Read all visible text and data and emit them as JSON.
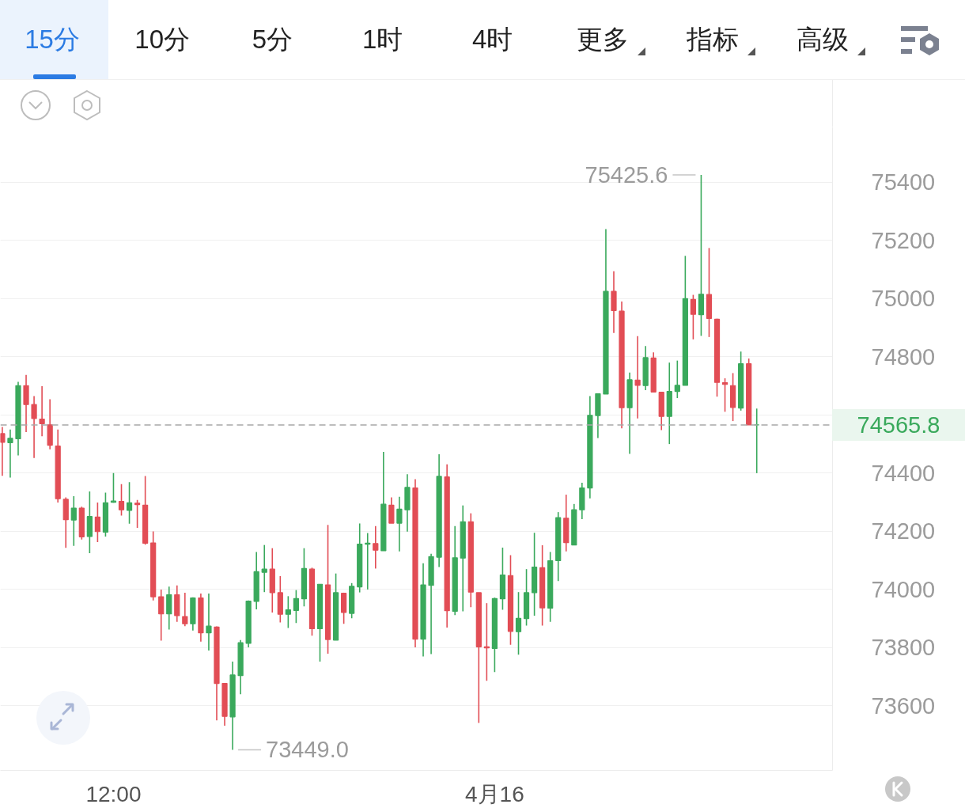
{
  "chart_data": {
    "type": "candlestick",
    "annotations": [
      "15分",
      "10分",
      "5分",
      "1时",
      "4时",
      "更多",
      "指标",
      "高级",
      "75425.6",
      "73449.0"
    ],
    "categories": [
      null,
      null,
      null,
      null,
      null,
      null,
      null,
      null,
      null,
      null,
      null,
      null,
      null,
      null,
      "12:00",
      null,
      null,
      null,
      null,
      null,
      null,
      null,
      null,
      null,
      null,
      null,
      null,
      null,
      null,
      null,
      null,
      null,
      null,
      null,
      null,
      null,
      null,
      null,
      null,
      null,
      null,
      null,
      null,
      null,
      null,
      null,
      null,
      null,
      null,
      null,
      null,
      null,
      null,
      null,
      null,
      null,
      null,
      null,
      null,
      null,
      null,
      null,
      "4月16",
      null,
      null,
      null,
      null,
      null,
      null,
      null,
      null,
      null,
      null,
      null,
      null,
      null,
      null,
      null,
      null,
      null,
      null,
      null,
      null,
      null,
      null,
      null,
      null,
      null,
      null,
      null,
      null,
      null,
      null,
      null,
      null,
      null
    ],
    "ohlc": [
      [
        74536,
        74559,
        74391,
        74506
      ],
      [
        74505,
        74550,
        74385,
        74520
      ],
      [
        74518,
        74714,
        74461,
        74701
      ],
      [
        74701,
        74738,
        74541,
        74636
      ],
      [
        74636,
        74665,
        74452,
        74588
      ],
      [
        74586,
        74699,
        74527,
        74570
      ],
      [
        74566,
        74654,
        74482,
        74496
      ],
      [
        74493,
        74550,
        74299,
        74312
      ],
      [
        74310,
        74317,
        74143,
        74240
      ],
      [
        74239,
        74321,
        74150,
        74280
      ],
      [
        74280,
        74285,
        74172,
        74181
      ],
      [
        74182,
        74337,
        74125,
        74251
      ],
      [
        74249,
        74299,
        74163,
        74199
      ],
      [
        74197,
        74333,
        74182,
        74298
      ],
      [
        74300,
        74400,
        74298,
        74304
      ],
      [
        74303,
        74362,
        74254,
        74274
      ],
      [
        74272,
        74369,
        74226,
        74298
      ],
      [
        74297,
        74308,
        74212,
        74292
      ],
      [
        74290,
        74390,
        74154,
        74159
      ],
      [
        74160,
        74200,
        73962,
        73975
      ],
      [
        73975,
        74000,
        73824,
        73916
      ],
      [
        73916,
        74010,
        73862,
        73982
      ],
      [
        73982,
        74014,
        73889,
        73910
      ],
      [
        73907,
        73989,
        73874,
        73882
      ],
      [
        73882,
        73973,
        73859,
        73971
      ],
      [
        73971,
        73986,
        73821,
        73851
      ],
      [
        73851,
        73986,
        73790,
        73874
      ],
      [
        73871,
        73873,
        73550,
        73677
      ],
      [
        73677,
        73678,
        73532,
        73564
      ],
      [
        73562,
        73752,
        73449,
        73706
      ],
      [
        73704,
        73826,
        73640,
        73817
      ],
      [
        73815,
        73962,
        73801,
        73960
      ],
      [
        73959,
        74129,
        73932,
        74061
      ],
      [
        74059,
        74153,
        73991,
        74070
      ],
      [
        74070,
        74142,
        73921,
        73989
      ],
      [
        73989,
        74046,
        73887,
        73915
      ],
      [
        73915,
        73977,
        73868,
        73930
      ],
      [
        73928,
        73998,
        73885,
        73969
      ],
      [
        73968,
        74142,
        73942,
        74072
      ],
      [
        74070,
        74075,
        73841,
        73865
      ],
      [
        73865,
        74018,
        73752,
        74018
      ],
      [
        74016,
        74222,
        73779,
        73828
      ],
      [
        73826,
        74055,
        73826,
        73989
      ],
      [
        73987,
        73989,
        73882,
        73921
      ],
      [
        73918,
        74022,
        73901,
        74011
      ],
      [
        74009,
        74227,
        73990,
        74156
      ],
      [
        74156,
        74194,
        74000,
        74159
      ],
      [
        74158,
        74218,
        74072,
        74135
      ],
      [
        74133,
        74473,
        74133,
        74293
      ],
      [
        74290,
        74317,
        74228,
        74228
      ],
      [
        74228,
        74319,
        74131,
        74276
      ],
      [
        74274,
        74396,
        74199,
        74351
      ],
      [
        74349,
        74379,
        73801,
        73829
      ],
      [
        73829,
        74090,
        73770,
        74016
      ],
      [
        74014,
        74123,
        73778,
        74113
      ],
      [
        74111,
        74465,
        74077,
        74389
      ],
      [
        74387,
        74430,
        73869,
        73927
      ],
      [
        73925,
        74218,
        73912,
        74109
      ],
      [
        74108,
        74289,
        73925,
        74233
      ],
      [
        74233,
        74262,
        73939,
        73991
      ],
      [
        73989,
        73989,
        73541,
        73803
      ],
      [
        73803,
        73953,
        73686,
        73799
      ],
      [
        73797,
        73972,
        73716,
        73969
      ],
      [
        73968,
        74144,
        73930,
        74050
      ],
      [
        74048,
        74118,
        73810,
        73856
      ],
      [
        73855,
        73991,
        73776,
        73901
      ],
      [
        73900,
        74070,
        73876,
        73989
      ],
      [
        73989,
        74195,
        73910,
        74077
      ],
      [
        74075,
        74152,
        73876,
        73937
      ],
      [
        73936,
        74129,
        73889,
        74099
      ],
      [
        74099,
        74266,
        74029,
        74247
      ],
      [
        74245,
        74326,
        74131,
        74161
      ],
      [
        74153,
        74294,
        74152,
        74274
      ],
      [
        74274,
        74367,
        74242,
        74349
      ],
      [
        74349,
        74665,
        74313,
        74599
      ],
      [
        74598,
        74674,
        74521,
        74673
      ],
      [
        74672,
        75239,
        74672,
        75025
      ],
      [
        75025,
        75094,
        74882,
        74959
      ],
      [
        74957,
        74990,
        74554,
        74625
      ],
      [
        74625,
        74746,
        74466,
        74721
      ],
      [
        74720,
        74871,
        74588,
        74702
      ],
      [
        74701,
        74837,
        74685,
        74797
      ],
      [
        74796,
        74815,
        74679,
        74679
      ],
      [
        74678,
        74679,
        74548,
        74595
      ],
      [
        74595,
        74780,
        74500,
        74681
      ],
      [
        74681,
        74787,
        74658,
        74702
      ],
      [
        74702,
        75147,
        74702,
        75000
      ],
      [
        74997,
        75013,
        74860,
        74946
      ],
      [
        74945,
        75425.6,
        74872,
        75015
      ],
      [
        75014,
        75174,
        74868,
        74932
      ],
      [
        74929,
        74931,
        74663,
        74712
      ],
      [
        74711,
        74726,
        74611,
        74705
      ],
      [
        74701,
        74744,
        74579,
        74626
      ],
      [
        74624,
        74818,
        74615,
        74776
      ],
      [
        74776,
        74794,
        74566,
        74566
      ],
      [
        74565.8,
        74622,
        74400,
        74565.8
      ]
    ],
    "colors": [
      "#e24d55",
      "#3aa95c",
      "#3aa95c",
      "#e24d55",
      "#e24d55",
      "#e24d55",
      "#e24d55",
      "#e24d55",
      "#e24d55",
      "#3aa95c",
      "#e24d55",
      "#3aa95c",
      "#e24d55",
      "#3aa95c",
      "#3aa95c",
      "#e24d55",
      "#3aa95c",
      "#e24d55",
      "#e24d55",
      "#e24d55",
      "#e24d55",
      "#3aa95c",
      "#e24d55",
      "#e24d55",
      "#3aa95c",
      "#e24d55",
      "#3aa95c",
      "#e24d55",
      "#e24d55",
      "#3aa95c",
      "#3aa95c",
      "#3aa95c",
      "#3aa95c",
      "#3aa95c",
      "#e24d55",
      "#e24d55",
      "#3aa95c",
      "#3aa95c",
      "#3aa95c",
      "#e24d55",
      "#3aa95c",
      "#e24d55",
      "#3aa95c",
      "#e24d55",
      "#3aa95c",
      "#3aa95c",
      "#3aa95c",
      "#e24d55",
      "#3aa95c",
      "#e24d55",
      "#3aa95c",
      "#3aa95c",
      "#e24d55",
      "#3aa95c",
      "#3aa95c",
      "#3aa95c",
      "#e24d55",
      "#3aa95c",
      "#3aa95c",
      "#e24d55",
      "#e24d55",
      "#e24d55",
      "#3aa95c",
      "#3aa95c",
      "#e24d55",
      "#3aa95c",
      "#3aa95c",
      "#3aa95c",
      "#e24d55",
      "#3aa95c",
      "#3aa95c",
      "#e24d55",
      "#3aa95c",
      "#3aa95c",
      "#3aa95c",
      "#3aa95c",
      "#3aa95c",
      "#e24d55",
      "#e24d55",
      "#3aa95c",
      "#e24d55",
      "#3aa95c",
      "#e24d55",
      "#e24d55",
      "#3aa95c",
      "#3aa95c",
      "#3aa95c",
      "#e24d55",
      "#3aa95c",
      "#e24d55",
      "#e24d55",
      "#e24d55",
      "#e24d55",
      "#3aa95c",
      "#e24d55",
      "#3aa95c"
    ],
    "ylim": [
      73378,
      75590
    ],
    "yticks": [
      73600,
      73800,
      74000,
      74200,
      74400,
      {
        "value": 74600,
        "label": null
      },
      74800,
      75000,
      75200,
      75400
    ],
    "grid": "y",
    "ref_lines": [
      {
        "axis": "y",
        "value": 74565.8,
        "label": "74565.8",
        "color": "#a8a8a8",
        "line_style": "dashed"
      }
    ]
  }
}
